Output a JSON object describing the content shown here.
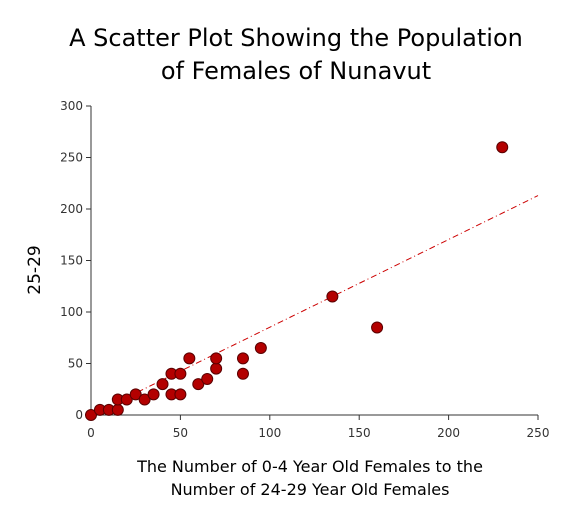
{
  "chart_data": {
    "type": "scatter",
    "title_lines": [
      "A Scatter Plot Showing the Population",
      "of Females of Nunavut"
    ],
    "xlabel_lines": [
      "The Number of 0-4 Year Old Females to the",
      "Number of 24-29 Year Old Females"
    ],
    "ylabel": "25-29",
    "xlim": [
      0,
      250
    ],
    "ylim": [
      0,
      300
    ],
    "x_ticks": [
      0,
      50,
      100,
      150,
      200,
      250
    ],
    "y_ticks": [
      0,
      50,
      100,
      150,
      200,
      250,
      300
    ],
    "grid": false,
    "point_color": "#b30000",
    "trendline_color": "#cc0000",
    "trendline": {
      "x": [
        0,
        250
      ],
      "y": [
        0,
        213
      ]
    },
    "points": [
      {
        "x": 0,
        "y": 0
      },
      {
        "x": 5,
        "y": 5
      },
      {
        "x": 10,
        "y": 5
      },
      {
        "x": 15,
        "y": 5
      },
      {
        "x": 15,
        "y": 15
      },
      {
        "x": 20,
        "y": 15
      },
      {
        "x": 25,
        "y": 20
      },
      {
        "x": 30,
        "y": 15
      },
      {
        "x": 35,
        "y": 20
      },
      {
        "x": 40,
        "y": 30
      },
      {
        "x": 45,
        "y": 40
      },
      {
        "x": 45,
        "y": 20
      },
      {
        "x": 50,
        "y": 40
      },
      {
        "x": 50,
        "y": 20
      },
      {
        "x": 55,
        "y": 55
      },
      {
        "x": 60,
        "y": 30
      },
      {
        "x": 65,
        "y": 35
      },
      {
        "x": 70,
        "y": 45
      },
      {
        "x": 70,
        "y": 55
      },
      {
        "x": 85,
        "y": 55
      },
      {
        "x": 85,
        "y": 40
      },
      {
        "x": 95,
        "y": 65
      },
      {
        "x": 135,
        "y": 115
      },
      {
        "x": 160,
        "y": 85
      },
      {
        "x": 230,
        "y": 260
      }
    ]
  }
}
